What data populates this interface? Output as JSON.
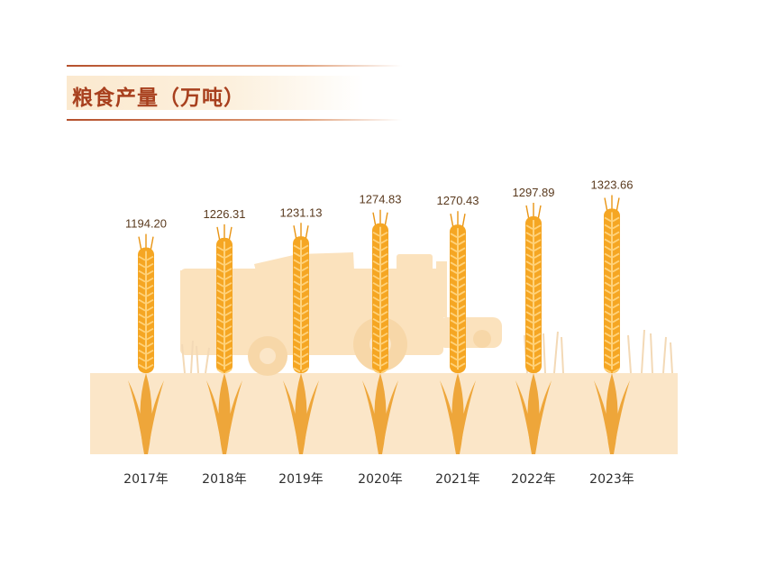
{
  "title": "粮食产量（万吨）",
  "colors": {
    "title_text": "#a8401e",
    "title_band": "#fbe9cf",
    "ground": "#fbe6c8",
    "harvester": "#fbe2bd",
    "grain": "#f5a623",
    "grain_dark": "#e89414",
    "grain_light": "#ffd27a",
    "leaf": "#eea63a"
  },
  "chart_data": {
    "type": "bar",
    "title": "粮食产量（万吨）",
    "categories": [
      "2017年",
      "2018年",
      "2019年",
      "2020年",
      "2021年",
      "2022年",
      "2023年"
    ],
    "values": [
      1194.2,
      1226.31,
      1231.13,
      1274.83,
      1270.43,
      1297.89,
      1323.66
    ],
    "value_labels": [
      "1194.20",
      "1226.31",
      "1231.13",
      "1274.83",
      "1270.43",
      "1297.89",
      "1323.66"
    ],
    "unit": "万吨",
    "mark": "wheat-ear"
  }
}
